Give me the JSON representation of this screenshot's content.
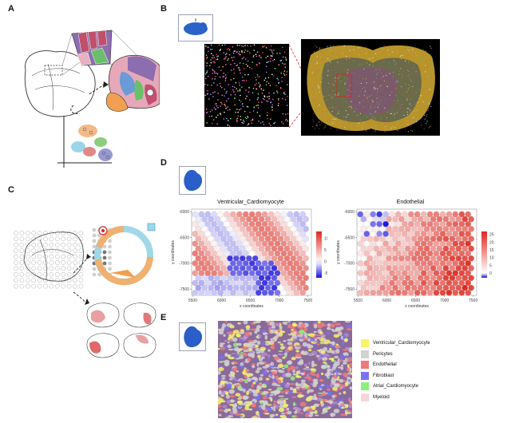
{
  "panels": {
    "a": "A",
    "b": "B",
    "c": "C",
    "d": "D",
    "e": "E"
  },
  "colors": {
    "pos_high": "#e0281e",
    "neg_low": "#1a10e0",
    "mid": "#ffffff",
    "pos_soft": "#f4a58a",
    "neg_soft": "#9c8ff0",
    "tissue_bg": "#000000",
    "tissue_gold": "#c9a437"
  },
  "chart_data": [
    {
      "type": "scatter",
      "title": "Ventricular_Cardiomyocyte",
      "xlabel": "x coordinates",
      "ylabel": "y coordinates",
      "xlim": [
        5480,
        7560
      ],
      "ylim": [
        -7620,
        -5950
      ],
      "x_ticks": [
        "5500",
        "6000",
        "6500",
        "7000",
        "7500"
      ],
      "y_ticks": [
        "-6000",
        "-6500",
        "-7000",
        "-7500"
      ],
      "colorbar_ticks": [
        "10",
        "5",
        "0",
        "-5"
      ],
      "color_range": [
        -7,
        13
      ]
    },
    {
      "type": "scatter",
      "title": "Endothelial",
      "xlabel": "x coordinates",
      "ylabel": "y coordinates",
      "xlim": [
        5480,
        7560
      ],
      "ylim": [
        -7620,
        -5950
      ],
      "x_ticks": [
        "5500",
        "6000",
        "6500",
        "7000",
        "7500"
      ],
      "y_ticks": [
        "-6000",
        "-6500",
        "-7000",
        "-7500"
      ],
      "colorbar_ticks": [
        "25",
        "20",
        "15",
        "10",
        "5",
        "0"
      ],
      "color_range": [
        -3,
        27
      ]
    }
  ],
  "legend_e": [
    {
      "label": "Ventricular_Cardiomyocyte",
      "color": "#f5f56a"
    },
    {
      "label": "Pericytes",
      "color": "#d2d2d2"
    },
    {
      "label": "Endothelial",
      "color": "#f07a7a"
    },
    {
      "label": "Fibroblast",
      "color": "#7a72f0"
    },
    {
      "label": "Atrial_Cardiomyocyte",
      "color": "#8ef07a"
    },
    {
      "label": "Myeloid",
      "color": "#f7d5da"
    }
  ],
  "icons": {
    "mouse_brain": "brain-icon",
    "heart": "heart-icon"
  }
}
